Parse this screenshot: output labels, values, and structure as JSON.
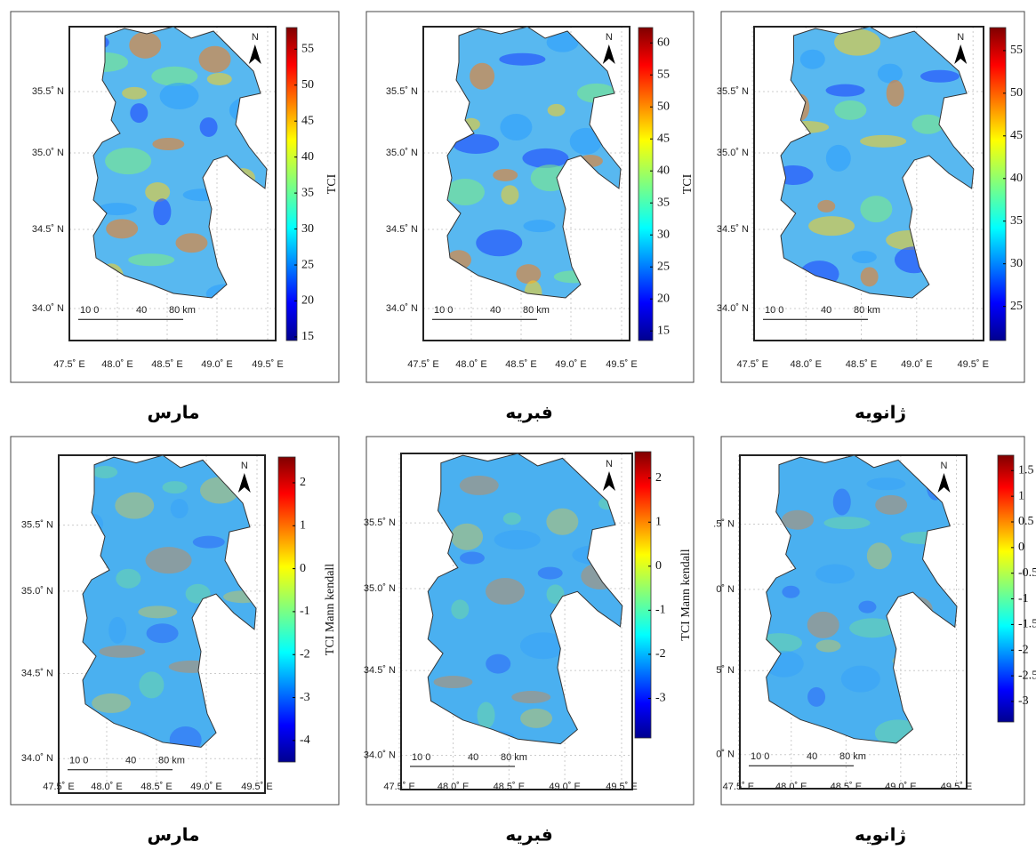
{
  "panels": [
    {
      "caption": "مارس",
      "colorbar_label": "TCI",
      "colorbar_ticks": [
        15,
        20,
        25,
        30,
        35,
        40,
        45,
        50,
        55
      ],
      "colorbar_range": [
        14.5,
        58
      ],
      "lat_labels": [
        "35.5˚ N",
        "35.0˚ N",
        "34.5˚ N",
        "34.0˚ N"
      ],
      "lon_labels": [
        "47.5˚ E",
        "48.0˚ E",
        "48.5˚ E",
        "49.0˚ E",
        "49.5˚ E"
      ],
      "scale_labels": [
        "10 0",
        "40",
        "80 km"
      ],
      "north_label": "N"
    },
    {
      "caption": "فبریه",
      "colorbar_label": "TCI",
      "colorbar_ticks": [
        15,
        20,
        25,
        30,
        35,
        40,
        45,
        50,
        55,
        60
      ],
      "colorbar_range": [
        13.5,
        62.4
      ],
      "lat_labels": [
        "35.5˚ N",
        "35.0˚ N",
        "34.5˚ N",
        "34.0˚ N"
      ],
      "lon_labels": [
        "47.5˚ E",
        "48.0˚ E",
        "48.5˚ E",
        "49.0˚ E",
        "49.5˚ E"
      ],
      "scale_labels": [
        "10 0",
        "40",
        "80 km"
      ],
      "north_label": "N"
    },
    {
      "caption": "ژانویه",
      "colorbar_label": "TCI",
      "colorbar_ticks": [
        25,
        30,
        35,
        40,
        45,
        50,
        55
      ],
      "colorbar_range": [
        21,
        57.7
      ],
      "lat_labels": [
        "35.5˚ N",
        "35.0˚ N",
        "34.5˚ N",
        "34.0˚ N"
      ],
      "lon_labels": [
        "47.5˚ E",
        "48.0˚ E",
        "48.5˚ E",
        "49.0˚ E",
        "49.5˚ E"
      ],
      "scale_labels": [
        "10 0",
        "40",
        "80 km"
      ],
      "north_label": "N"
    },
    {
      "caption": "مارس",
      "colorbar_label": "TCI Mann kendall",
      "colorbar_ticks": [
        -4,
        -3,
        -2,
        -1,
        0,
        1,
        2
      ],
      "colorbar_range": [
        -4.5,
        2.6
      ],
      "lat_labels": [
        "35.5˚ N",
        "35.0˚ N",
        "34.5˚ N",
        "34.0˚ N"
      ],
      "lon_labels": [
        "47.5˚ E",
        "48.0˚ E",
        "48.5˚ E",
        "49.0˚ E",
        "49.5˚ E"
      ],
      "scale_labels": [
        "10 0",
        "40",
        "80 km"
      ],
      "north_label": "N"
    },
    {
      "caption": "فبریه",
      "colorbar_label": "TCI Mann kendall",
      "colorbar_ticks": [
        -3,
        -2,
        -1,
        0,
        1,
        2
      ],
      "colorbar_range": [
        -3.9,
        2.6
      ],
      "lat_labels": [
        "35.5˚ N",
        "35.0˚ N",
        "34.5˚ N",
        "34.0˚ N"
      ],
      "lon_labels": [
        "47.5˚ E",
        "48.0˚ E",
        "48.5˚ E",
        "49.0˚ E",
        "49.5˚ E"
      ],
      "scale_labels": [
        "10 0",
        "40",
        "80 km"
      ],
      "north_label": "N"
    },
    {
      "caption": "ژانویه",
      "colorbar_label": "TCI Mann kendall",
      "colorbar_ticks": [
        -3,
        -2.5,
        -2,
        -1.5,
        -1,
        -0.5,
        0,
        0.5,
        1,
        1.5
      ],
      "colorbar_range": [
        -3.4,
        1.8
      ],
      "lat_labels": [
        ".5˚ N",
        "0˚ N",
        "5˚ N",
        "0˚ N"
      ],
      "lon_labels": [
        "47.5˚ E",
        "48.0˚ E",
        "48.5˚ E",
        "49.0˚ E",
        "49.5˚ E"
      ],
      "scale_labels": [
        "10 0",
        "40",
        "80 km"
      ],
      "north_label": "N"
    }
  ]
}
